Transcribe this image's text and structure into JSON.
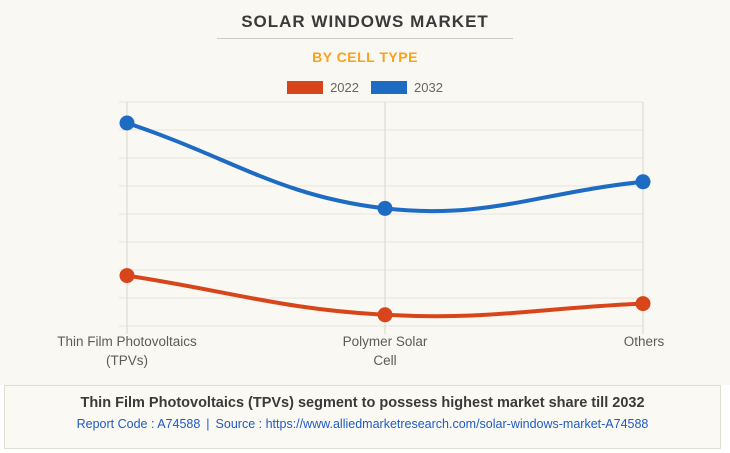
{
  "header": {
    "title": "SOLAR WINDOWS MARKET",
    "subtitle": "BY CELL TYPE"
  },
  "chart_data": {
    "type": "line",
    "categories": [
      "Thin Film Photovoltaics (TPVs)",
      "Polymer Solar Cell",
      "Others"
    ],
    "series": [
      {
        "name": "2022",
        "color": "#d9451b",
        "values": [
          1.8,
          0.4,
          0.8
        ]
      },
      {
        "name": "2032",
        "color": "#1e6bc4",
        "values": [
          7.25,
          4.2,
          5.15
        ]
      }
    ],
    "title": "SOLAR WINDOWS MARKET",
    "subtitle": "BY CELL TYPE",
    "xlabel": "",
    "ylabel": "",
    "ylim": [
      0,
      8
    ],
    "grid": true,
    "legend_position": "top",
    "curve": "smooth",
    "marker": "circle"
  },
  "colors": {
    "background": "#faf8f2",
    "subtitle_accent": "#f9a21c",
    "grid": "#e6e3db",
    "axis": "#d9d6ce",
    "link": "#1e5bc6",
    "heading_text": "#3a3a3a",
    "axis_label_text": "#5b5b5b"
  },
  "footer": {
    "headline": "Thin Film Photovoltaics (TPVs) segment to possess highest market share till 2032",
    "report_code": "Report Code : A74588",
    "separator": "|",
    "source_label": "Source :",
    "source_url": "https://www.alliedmarketresearch.com/solar-windows-market-A74588"
  }
}
